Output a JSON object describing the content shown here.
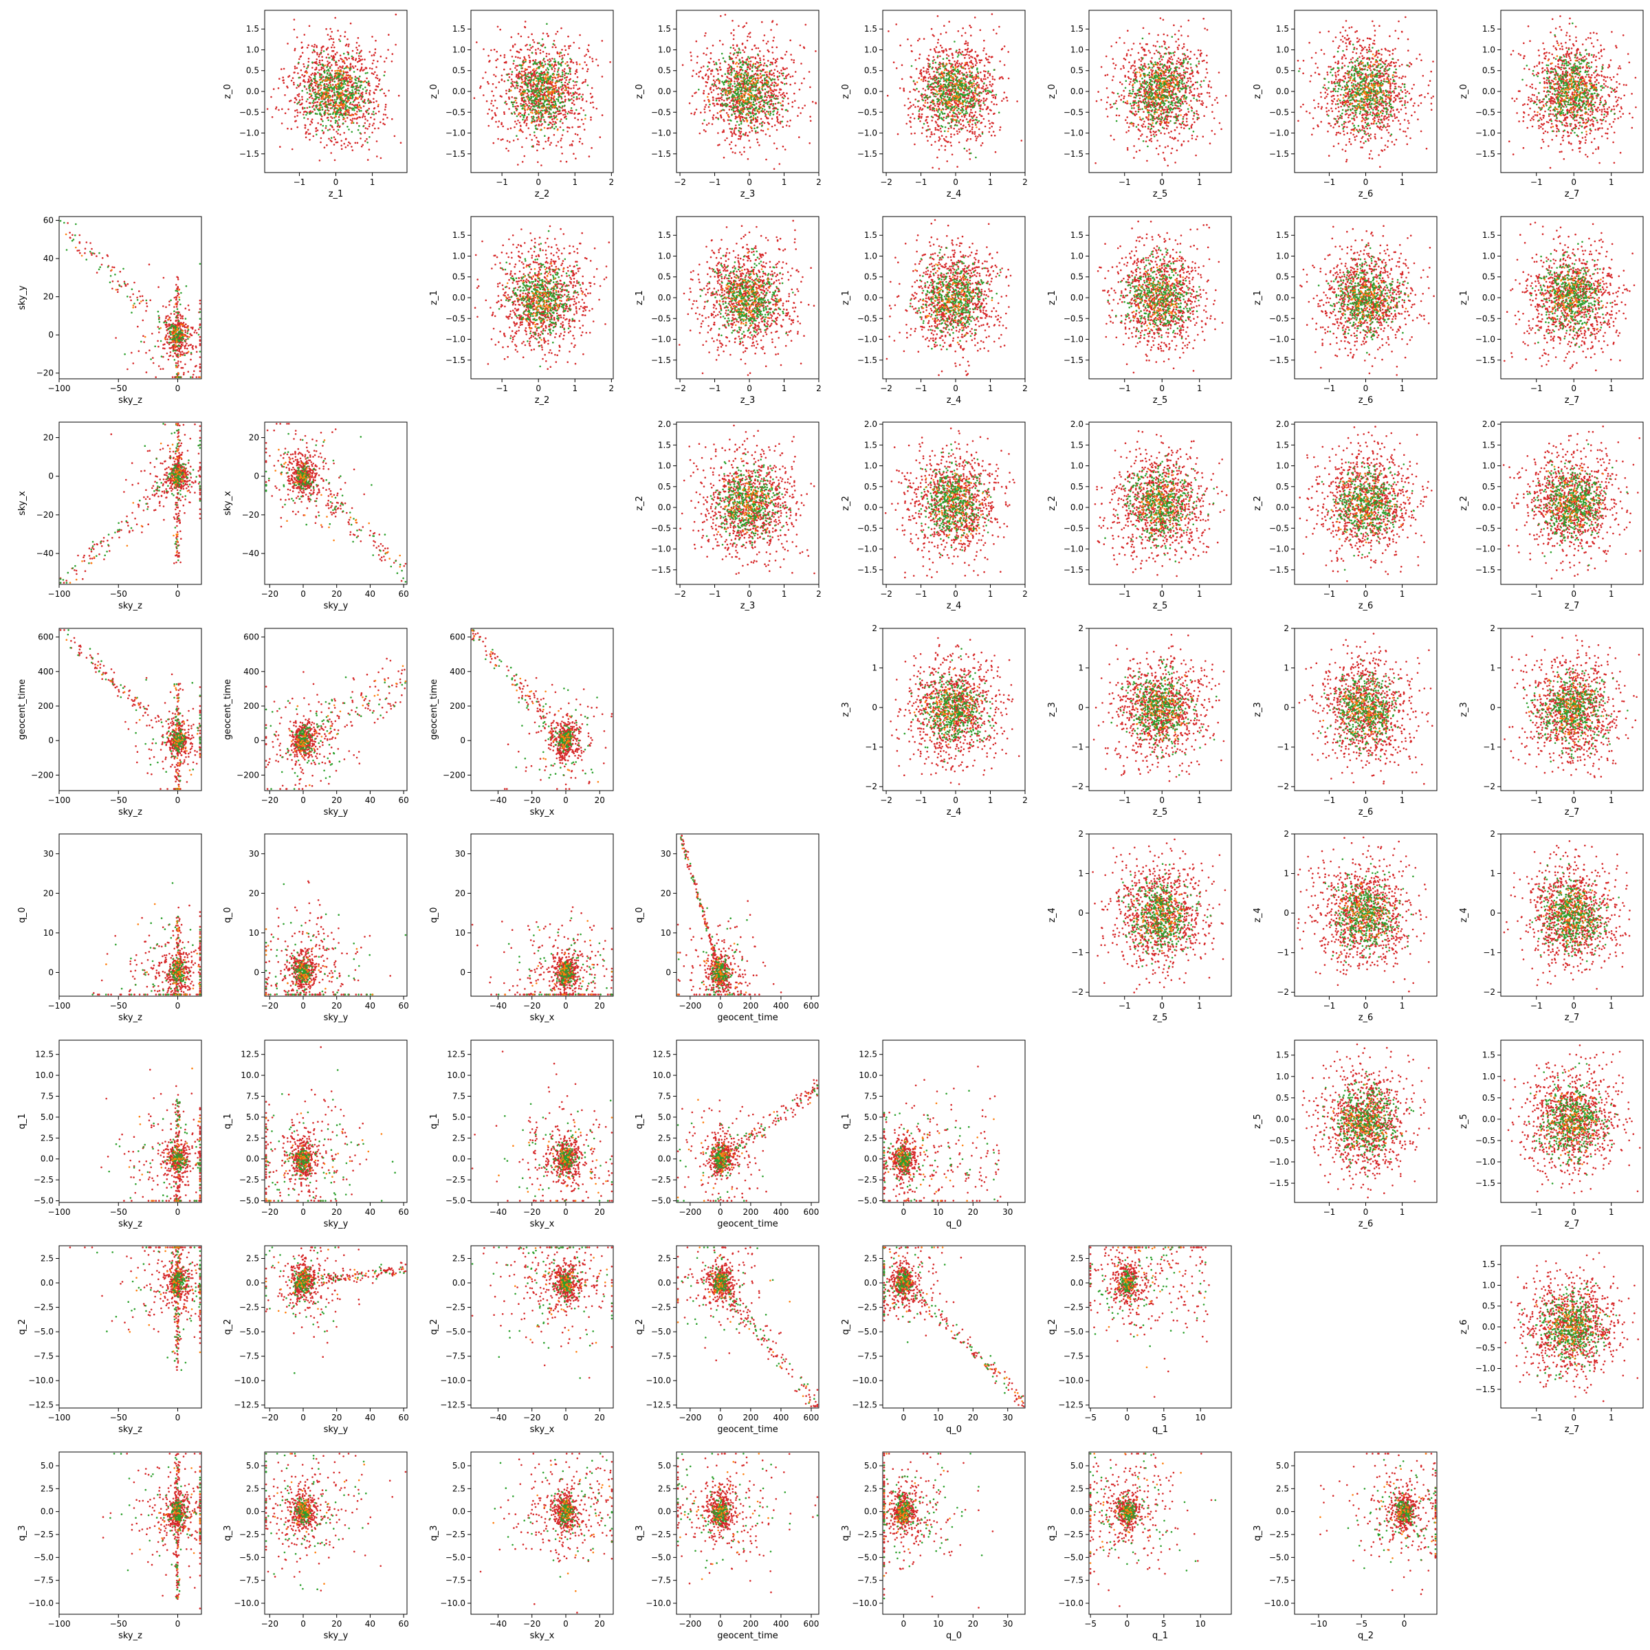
{
  "colors": {
    "red": "#d62728",
    "green": "#2ca02c",
    "orange": "#ff7f0e"
  },
  "chart_data": {
    "type": "scatter",
    "layout": "pair-grid-9x9",
    "variables": [
      "sky_z",
      "sky_y",
      "sky_x",
      "geocent_time",
      "q_0",
      "q_1",
      "q_2",
      "q_3",
      "z_0",
      "z_1",
      "z_2",
      "z_3",
      "z_4",
      "z_5",
      "z_6",
      "z_7"
    ],
    "series": [
      {
        "color": "red"
      },
      {
        "color": "green"
      },
      {
        "color": "orange"
      }
    ],
    "lower": {
      "rows": [
        "sky_y",
        "sky_x",
        "geocent_time",
        "q_0",
        "q_1",
        "q_2",
        "q_3"
      ],
      "cols": [
        "sky_z",
        "sky_y",
        "sky_x",
        "geocent_time",
        "q_0",
        "q_1",
        "q_2"
      ]
    },
    "upper": {
      "rows": [
        "z_0",
        "z_1",
        "z_2",
        "z_3",
        "z_4",
        "z_5",
        "z_6"
      ],
      "cols": [
        "z_1",
        "z_2",
        "z_3",
        "z_4",
        "z_5",
        "z_6",
        "z_7"
      ]
    },
    "axes": {
      "sky_z": {
        "lim": [
          -100,
          20
        ],
        "ticks": [
          -100,
          -50,
          0
        ],
        "labels": [
          "−100",
          "−50",
          "0"
        ]
      },
      "sky_y": {
        "lim": [
          -23,
          62
        ],
        "ticks": [
          -20,
          0,
          20,
          40,
          60
        ],
        "labels": [
          "−20",
          "0",
          "20",
          "40",
          "60"
        ]
      },
      "sky_x": {
        "lim": [
          -56,
          28
        ],
        "ticks": [
          -40,
          -20,
          0,
          20
        ],
        "labels": [
          "−40",
          "−20",
          "0",
          "20"
        ]
      },
      "geocent_time": {
        "lim": [
          -290,
          650
        ],
        "ticks": [
          -200,
          0,
          200,
          400,
          600
        ],
        "labels": [
          "−200",
          "0",
          "200",
          "400",
          "600"
        ]
      },
      "q_0": {
        "lim": [
          -6,
          35
        ],
        "ticks": [
          0,
          10,
          20,
          30
        ],
        "labels": [
          "0",
          "10",
          "20",
          "30"
        ]
      },
      "q_1": {
        "lim": [
          -5.2,
          14.2
        ],
        "xticks": [
          -5,
          0,
          5,
          10
        ],
        "xlabels": [
          "−5",
          "0",
          "5",
          "10"
        ],
        "ticks": [
          -5,
          -2.5,
          0,
          2.5,
          5,
          7.5,
          10,
          12.5
        ],
        "labels": [
          "−5.0",
          "−2.5",
          "0.0",
          "2.5",
          "5.0",
          "7.5",
          "10.0",
          "12.5"
        ]
      },
      "q_2": {
        "lim": [
          -12.8,
          3.8
        ],
        "xticks": [
          -10,
          -5,
          0
        ],
        "xlabels": [
          "−10",
          "−5",
          "0"
        ],
        "ticks": [
          -12.5,
          -10,
          -7.5,
          -5,
          -2.5,
          0,
          2.5
        ],
        "labels": [
          "−12.5",
          "−10.0",
          "−7.5",
          "−5.0",
          "−2.5",
          "0.0",
          "2.5"
        ]
      },
      "q_3": {
        "lim": [
          -11.2,
          6.5
        ],
        "ticks": [
          -10,
          -7.5,
          -5,
          -2.5,
          0,
          2.5,
          5
        ],
        "labels": [
          "−10.0",
          "−7.5",
          "−5.0",
          "−2.5",
          "0.0",
          "2.5",
          "5.0"
        ]
      },
      "z_0": {
        "lim": [
          -1.95,
          1.95
        ],
        "ticks": [
          -1.5,
          -1,
          -0.5,
          0,
          0.5,
          1,
          1.5
        ],
        "labels": [
          "−1.5",
          "−1.0",
          "−0.5",
          "0.0",
          "0.5",
          "1.0",
          "1.5"
        ]
      },
      "z_1": {
        "lim": [
          -1.95,
          1.95
        ],
        "xticks": [
          -1,
          0,
          1
        ],
        "xlabels": [
          "−1",
          "0",
          "1"
        ],
        "ticks": [
          -1.5,
          -1,
          -0.5,
          0,
          0.5,
          1,
          1.5
        ],
        "labels": [
          "−1.5",
          "−1.0",
          "−0.5",
          "0.0",
          "0.5",
          "1.0",
          "1.5"
        ]
      },
      "z_2": {
        "lim": [
          -1.85,
          2.05
        ],
        "xticks": [
          -1,
          0,
          1,
          2
        ],
        "xlabels": [
          "−1",
          "0",
          "1",
          "2"
        ],
        "ticks": [
          -1.5,
          -1,
          -0.5,
          0,
          0.5,
          1,
          1.5,
          2
        ],
        "labels": [
          "−1.5",
          "−1.0",
          "−0.5",
          "0.0",
          "0.5",
          "1.0",
          "1.5",
          "2.0"
        ]
      },
      "z_3": {
        "lim": [
          -2.1,
          2.0
        ],
        "ticks": [
          -2,
          -1,
          0,
          1,
          2
        ],
        "labels": [
          "−2",
          "−1",
          "0",
          "1",
          "2"
        ]
      },
      "z_4": {
        "lim": [
          -2.1,
          2.0
        ],
        "ticks": [
          -2,
          -1,
          0,
          1,
          2
        ],
        "labels": [
          "−2",
          "−1",
          "0",
          "1",
          "2"
        ]
      },
      "z_5": {
        "lim": [
          -1.95,
          1.85
        ],
        "xticks": [
          -1,
          0,
          1
        ],
        "xlabels": [
          "−1",
          "0",
          "1"
        ],
        "ticks": [
          -1.5,
          -1,
          -0.5,
          0,
          0.5,
          1,
          1.5
        ],
        "labels": [
          "−1.5",
          "−1.0",
          "−0.5",
          "0.0",
          "0.5",
          "1.0",
          "1.5"
        ]
      },
      "z_6": {
        "lim": [
          -1.95,
          1.95
        ],
        "xticks": [
          -1,
          0,
          1
        ],
        "xlabels": [
          "−1",
          "0",
          "1"
        ],
        "ticks": [
          -1.5,
          -1,
          -0.5,
          0,
          0.5,
          1,
          1.5
        ],
        "labels": [
          "−1.5",
          "−1.0",
          "−0.5",
          "0.0",
          "0.5",
          "1.0",
          "1.5"
        ]
      },
      "z_7": {
        "lim": [
          -1.95,
          1.85
        ],
        "xticks": [
          -1,
          0,
          1
        ],
        "xlabels": [
          "−1",
          "0",
          "1"
        ],
        "ticks": [
          -1.5,
          -1,
          -0.5,
          0,
          0.5,
          1,
          1.5
        ],
        "labels": [
          "−1.5",
          "−1.0",
          "−0.5",
          "0.0",
          "0.5",
          "1.0",
          "1.5"
        ]
      }
    }
  }
}
